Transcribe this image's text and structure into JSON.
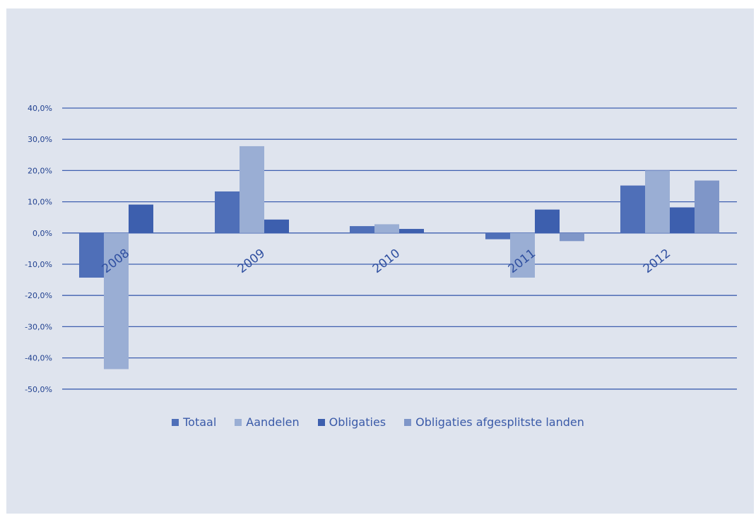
{
  "colors": {
    "background": "#dfe4ee",
    "gridline": "#3f5fb0",
    "tick_label": "#1f3f8f"
  },
  "chart_data": {
    "type": "bar",
    "categories": [
      "2008",
      "2009",
      "2010",
      "2011",
      "2012"
    ],
    "series": [
      {
        "name": "Totaal",
        "color": "#4f6fb8",
        "values": [
          -14.3,
          13.3,
          2.2,
          -2.0,
          15.2
        ]
      },
      {
        "name": "Aandelen",
        "color": "#9aaed4",
        "values": [
          -43.6,
          27.8,
          2.8,
          -14.3,
          20.0
        ]
      },
      {
        "name": "Obligaties",
        "color": "#3d5fae",
        "values": [
          9.1,
          4.3,
          1.3,
          7.5,
          8.2
        ]
      },
      {
        "name": "Obligaties afgesplitste landen",
        "color": "#7f96c8",
        "values": [
          null,
          null,
          null,
          -2.6,
          16.8
        ]
      }
    ],
    "y_ticks": [
      "40,0%",
      "30,0%",
      "20,0%",
      "10,0%",
      "0,0%",
      "-10,0%",
      "-20,0%",
      "-30,0%",
      "-40,0%",
      "-50,0%"
    ],
    "ylim": [
      -50,
      40
    ],
    "title": "",
    "xlabel": "",
    "ylabel": "",
    "grid": true,
    "legend_position": "bottom"
  }
}
